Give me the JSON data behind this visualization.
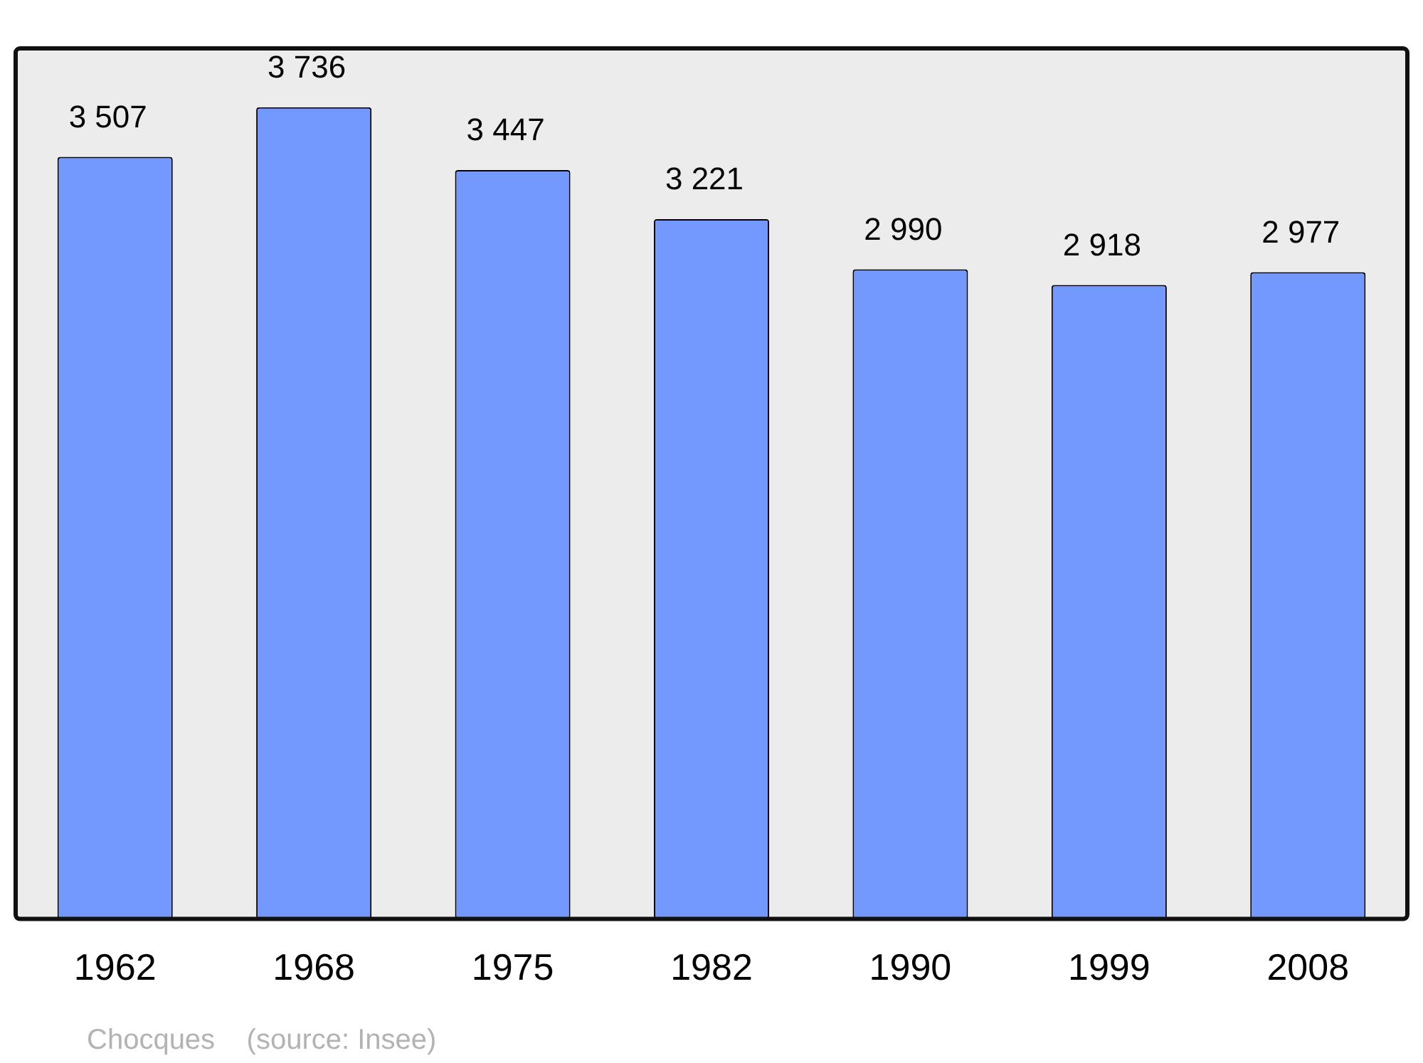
{
  "chart_data": {
    "type": "bar",
    "categories": [
      "1962",
      "1968",
      "1975",
      "1982",
      "1990",
      "1999",
      "2008"
    ],
    "values": [
      3507,
      3736,
      3447,
      3221,
      2990,
      2918,
      2977
    ],
    "value_labels": [
      "3 507",
      "3 736",
      "3 447",
      "3 221",
      "2 990",
      "2 918",
      "2 977"
    ],
    "color": "#7399ff",
    "grid": false,
    "legend": false,
    "tick_labels": "x",
    "annotations": [
      "Chocques    (source: Insee)"
    ]
  }
}
